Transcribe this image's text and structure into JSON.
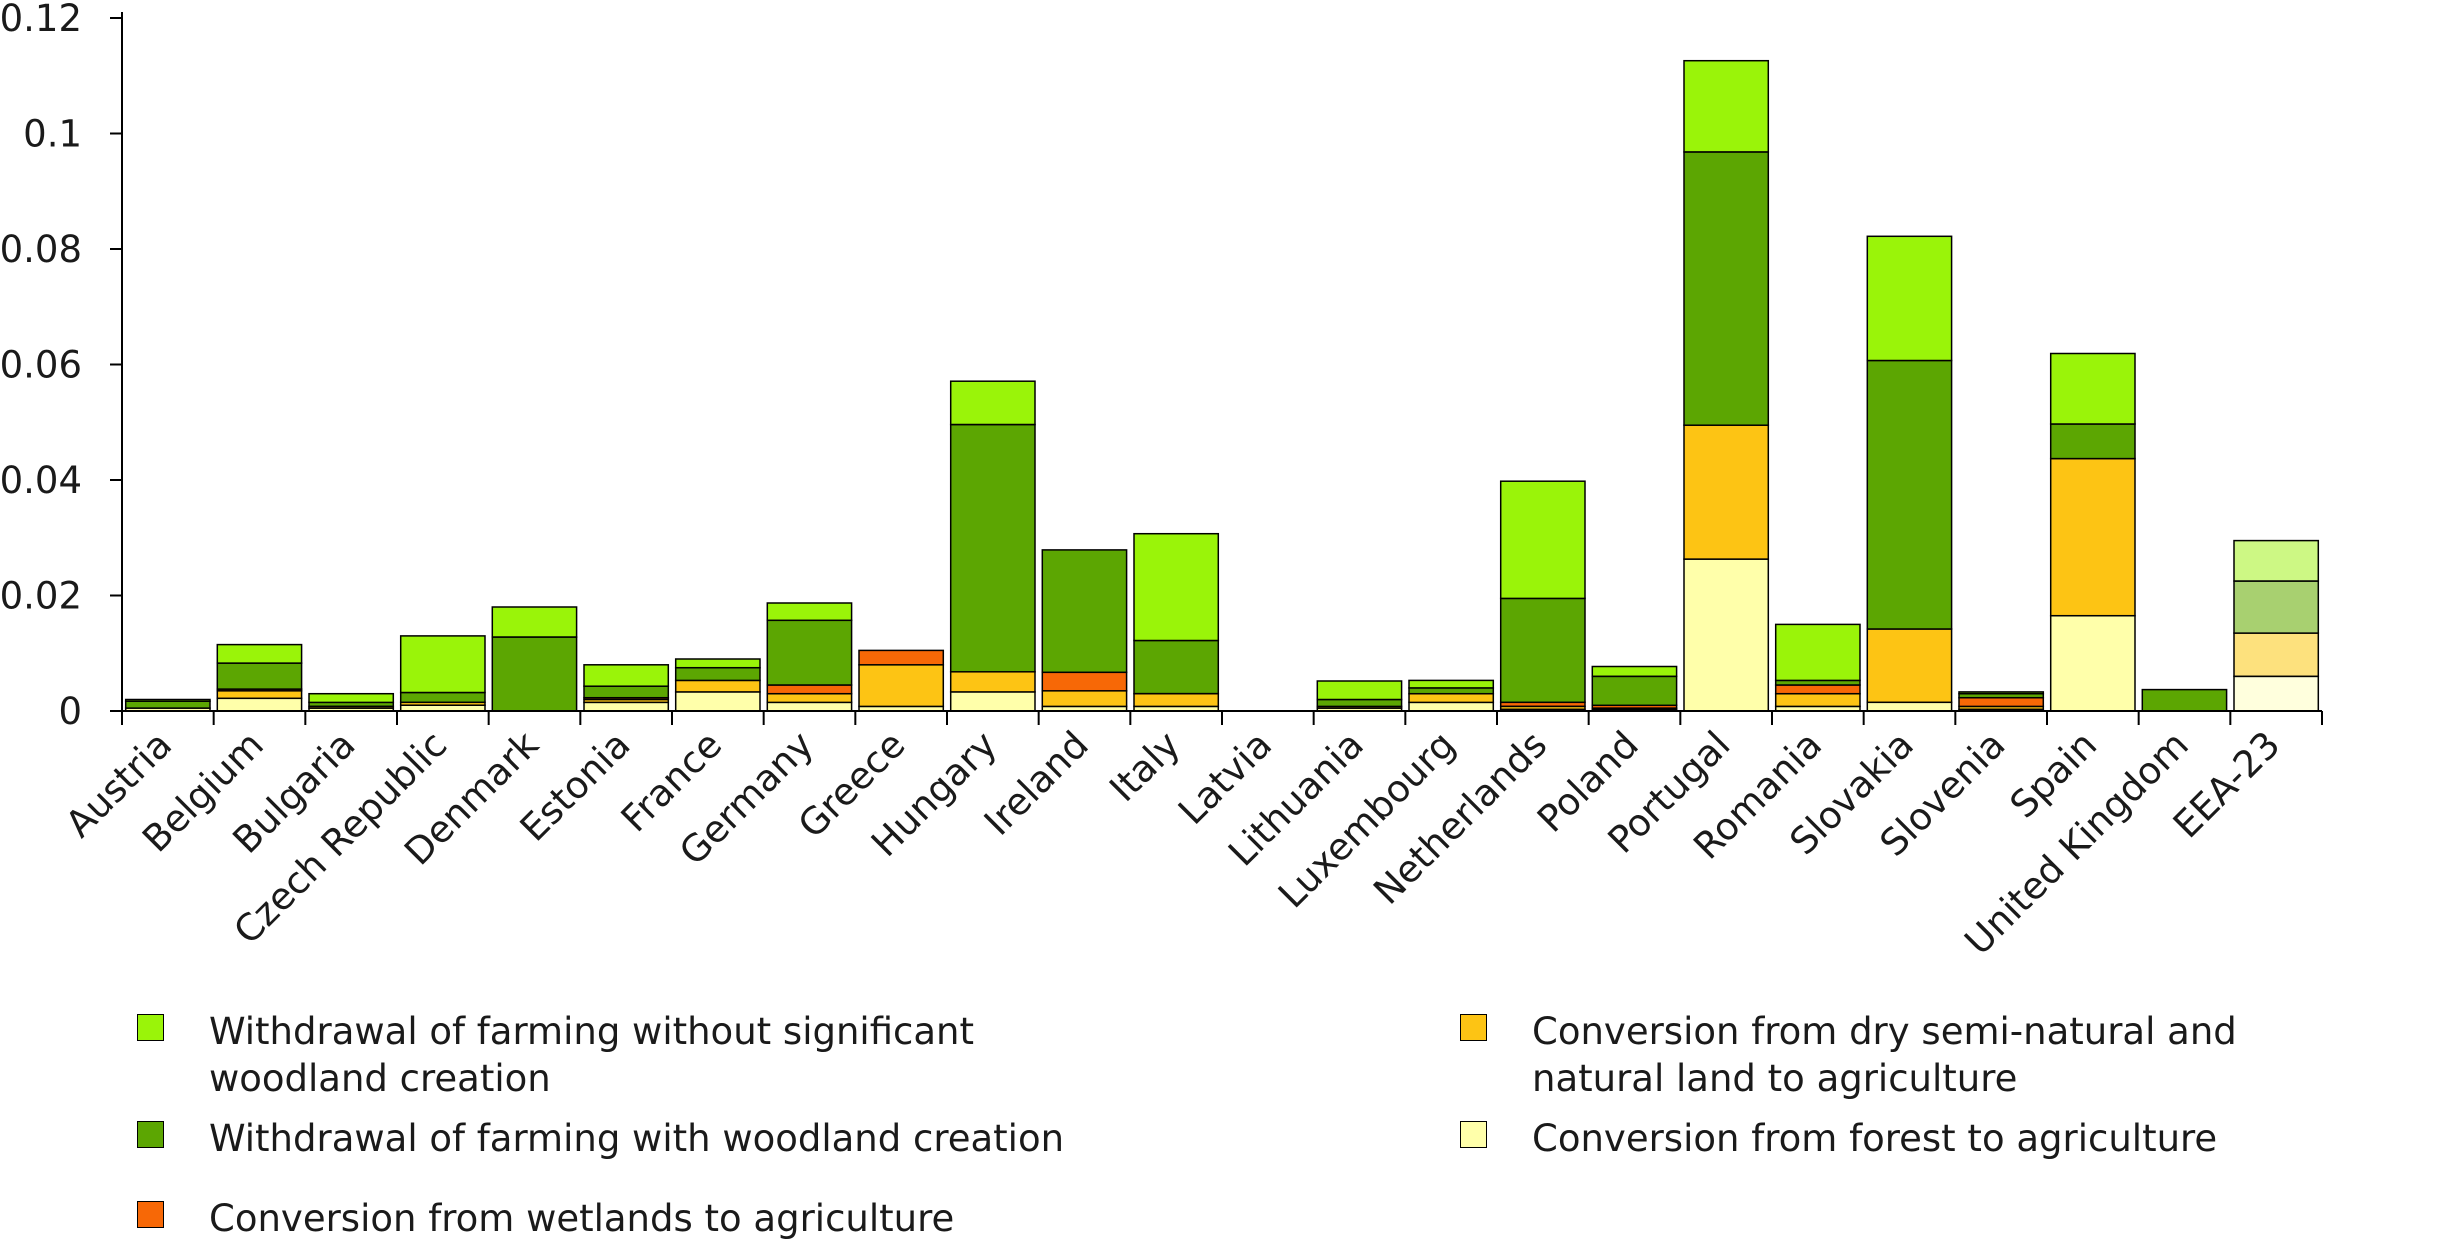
{
  "chart_data": {
    "type": "bar",
    "stacked": true,
    "ylim": [
      0,
      0.12
    ],
    "yticks": [
      "0",
      "0.02",
      "0.04",
      "0.06",
      "0.08",
      "0.1",
      "0.12"
    ],
    "grid": false,
    "legend_position": "bottom",
    "categories": [
      "Austria",
      "Belgium",
      "Bulgaria",
      "Czech Republic",
      "Denmark",
      "Estonia",
      "France",
      "Germany",
      "Greece",
      "Hungary",
      "Ireland",
      "Italy",
      "Latvia",
      "Lithuania",
      "Luxembourg",
      "Netherlands",
      "Poland",
      "Portugal",
      "Romania",
      "Slovakia",
      "Slovenia",
      "Spain",
      "United Kingdom",
      "EEA-23"
    ],
    "series": [
      {
        "name": "Conversion from forest to agriculture",
        "color": "#ffffaa",
        "values": [
          0.0005,
          0.0022,
          0.0005,
          0.001,
          0,
          0.0015,
          0.0033,
          0.0015,
          0.0008,
          0.0033,
          0.0008,
          0.0008,
          0,
          0.0005,
          0.0015,
          0.0003,
          0.0003,
          0.0263,
          0.0008,
          0.0015,
          0.0003,
          0.0165,
          0,
          0.006
        ]
      },
      {
        "name": "Conversion from dry semi-natural and natural land to agriculture",
        "color": "#fdc414",
        "values": [
          0,
          0.0013,
          0.0003,
          0.0005,
          0,
          0.0005,
          0.002,
          0.0015,
          0.0072,
          0.0035,
          0.0027,
          0.0022,
          0,
          0.0003,
          0.0015,
          0.0005,
          0.0002,
          0.0232,
          0.0022,
          0.0127,
          0.0005,
          0.0272,
          0,
          0.0075
        ]
      },
      {
        "name": "Conversion from wetlands to agriculture",
        "color": "#f76806",
        "values": [
          0,
          0.0003,
          0,
          0,
          0,
          0.0003,
          0,
          0.0015,
          0.0025,
          0,
          0.0032,
          0,
          0,
          0,
          0,
          0.0007,
          0.0005,
          0,
          0.0015,
          0,
          0.0015,
          0,
          0,
          0
        ]
      },
      {
        "name": "Withdrawal of farming with woodland creation",
        "color": "#5ca602",
        "values": [
          0.0012,
          0.0045,
          0.0007,
          0.0017,
          0.0128,
          0.002,
          0.0022,
          0.0112,
          0,
          0.0428,
          0.0212,
          0.0092,
          0,
          0.0012,
          0.001,
          0.018,
          0.005,
          0.0473,
          0.0008,
          0.0465,
          0.0007,
          0.006,
          0.0037,
          0.009
        ]
      },
      {
        "name": "Withdrawal of farming without significant woodland creation",
        "color": "#9af409",
        "values": [
          0.0003,
          0.0032,
          0.0015,
          0.0098,
          0.0052,
          0.0037,
          0.0015,
          0.003,
          0,
          0.0075,
          0,
          0.0185,
          0,
          0.0032,
          0.0013,
          0.0203,
          0.0017,
          0.0158,
          0.0097,
          0.0215,
          0.0003,
          0.0122,
          0,
          0.007
        ]
      }
    ],
    "highlight_colors": [
      "#ffffdd",
      "#fde17d",
      "#fbb382",
      "#a8d070",
      "#cdf884"
    ],
    "highlight_category": "EEA-23"
  },
  "legend": [
    {
      "key": "without_woodland",
      "label": "Withdrawal of farming without significant woodland creation",
      "color": "#9af409"
    },
    {
      "key": "with_woodland",
      "label": "Withdrawal of farming with woodland creation",
      "color": "#5ca602"
    },
    {
      "key": "wetlands",
      "label": "Conversion from wetlands to agriculture",
      "color": "#f76806"
    },
    {
      "key": "dry",
      "label": "Conversion from dry semi-natural and natural land to agriculture",
      "color": "#fdc414"
    },
    {
      "key": "forest",
      "label": "Conversion from forest to agriculture",
      "color": "#ffffaa"
    }
  ]
}
